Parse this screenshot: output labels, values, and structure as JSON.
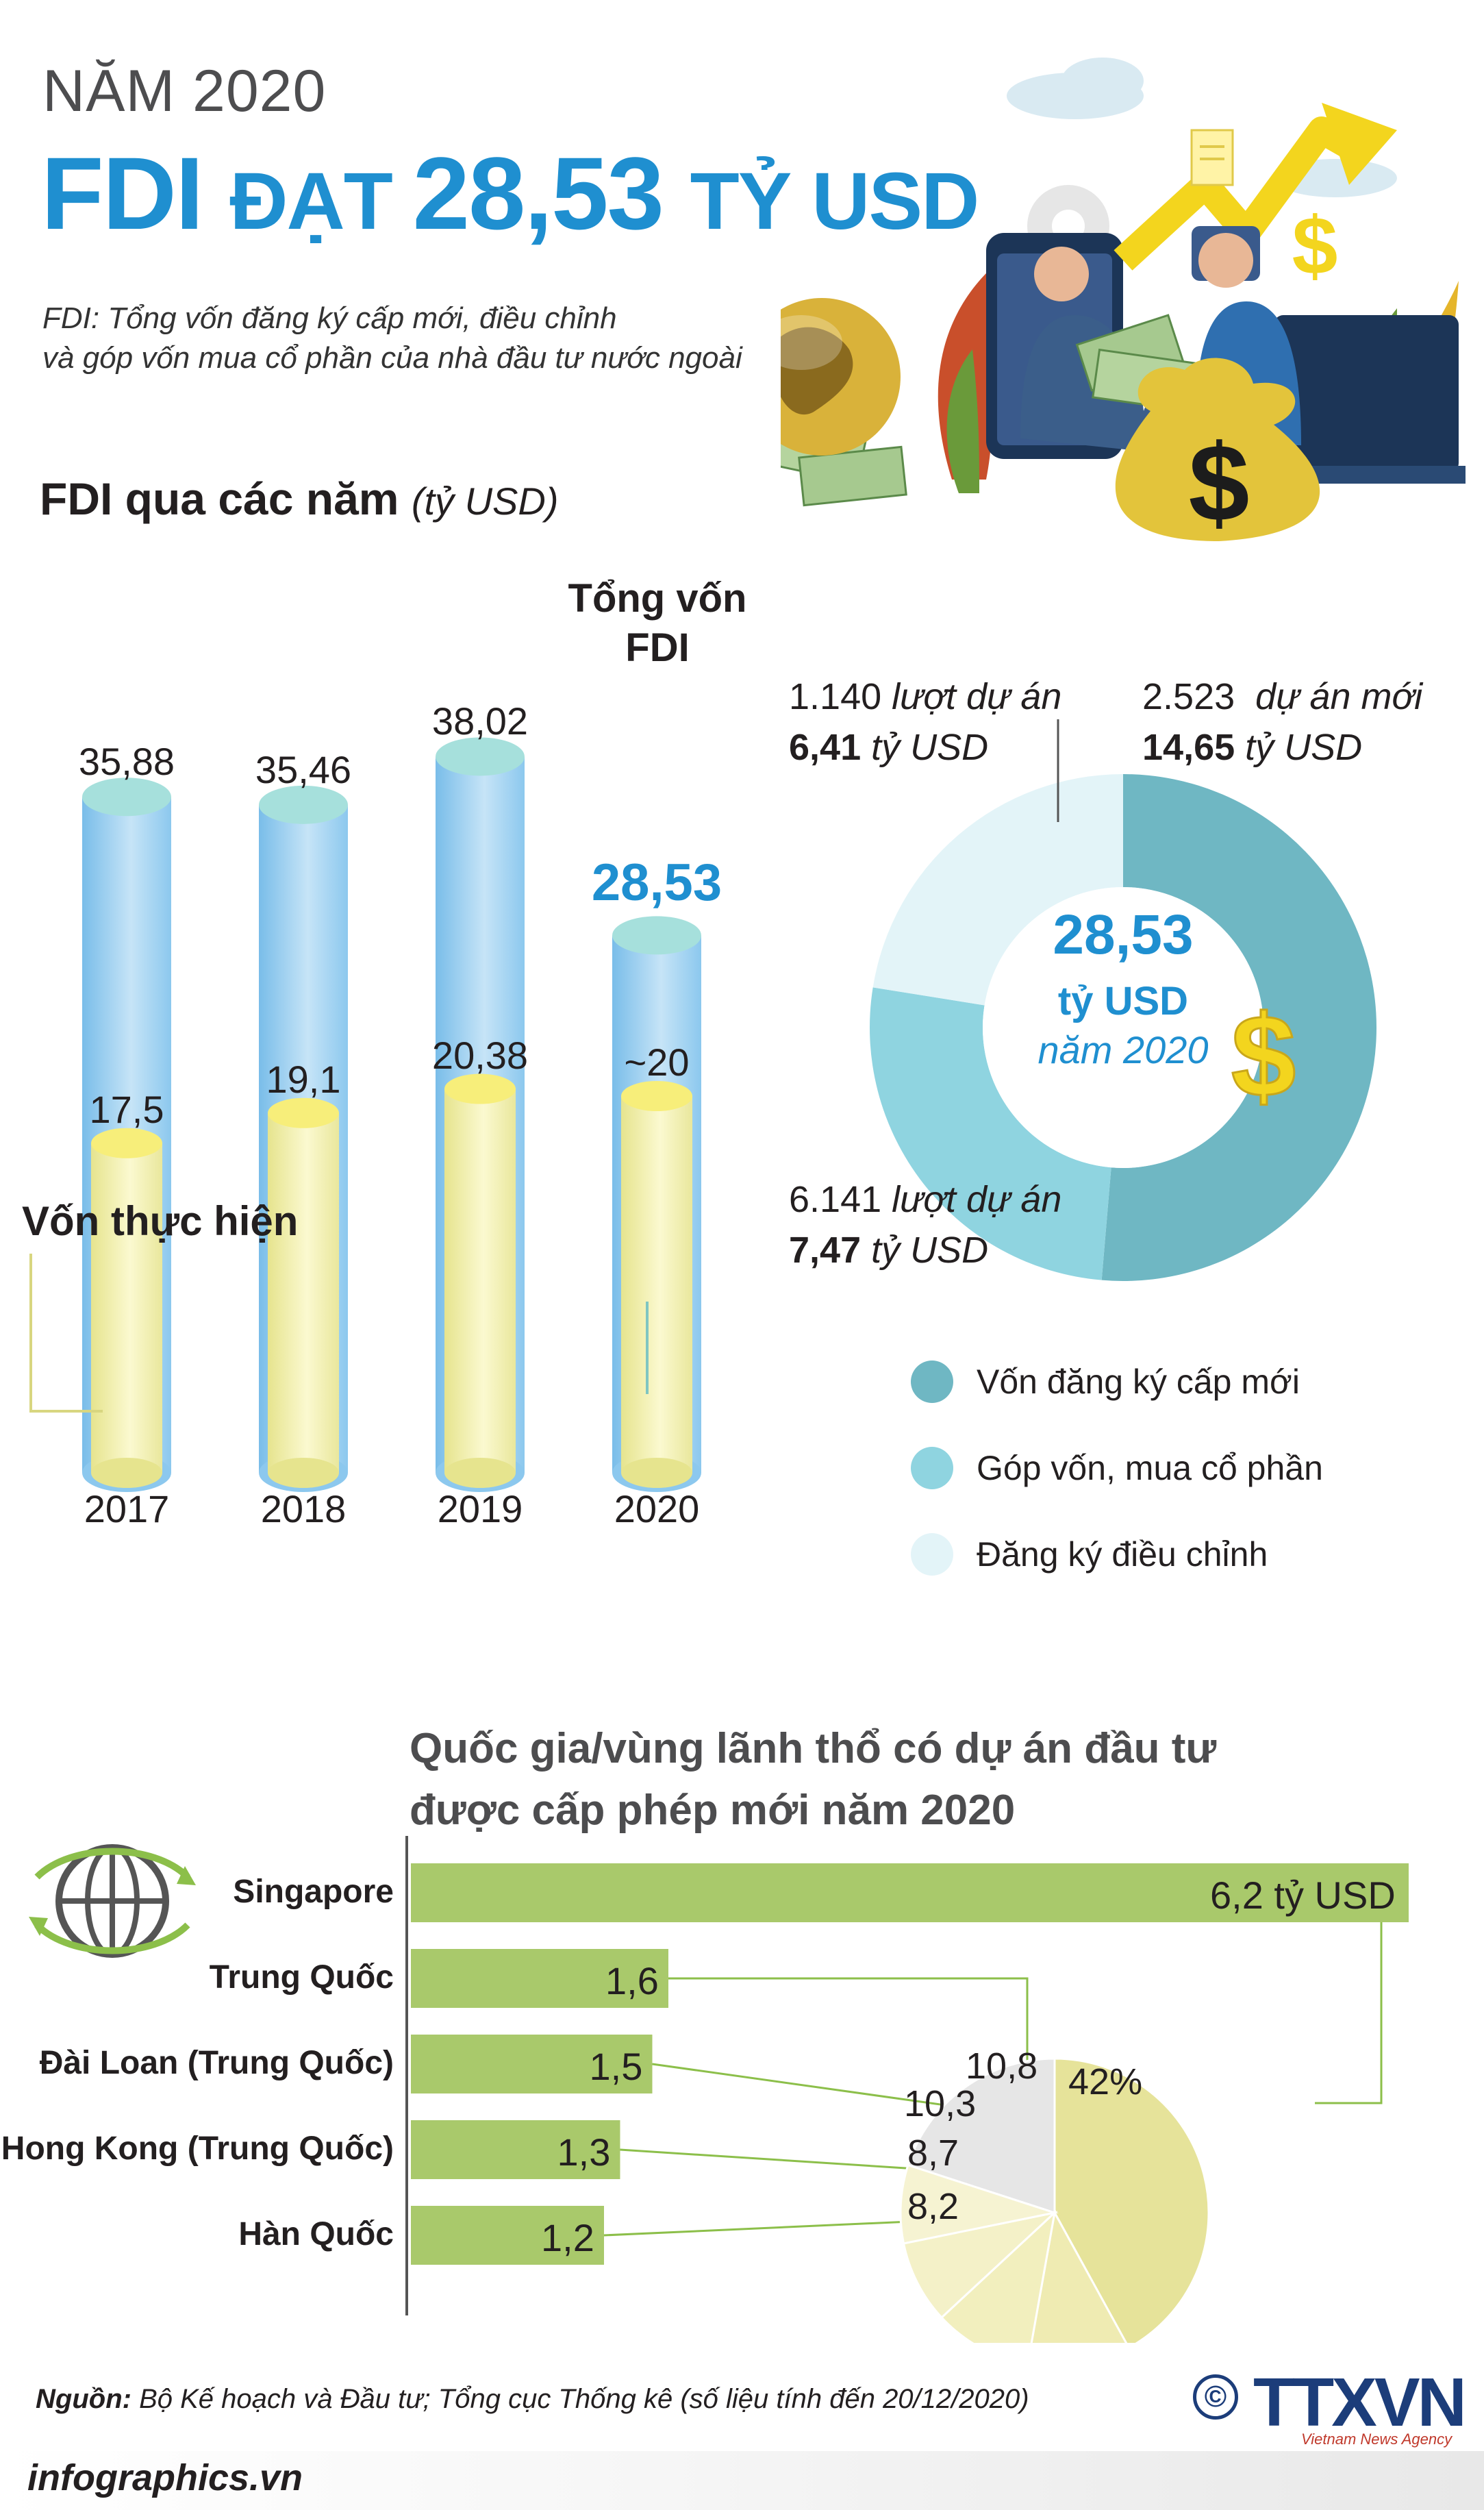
{
  "header": {
    "kicker": "NĂM 2020",
    "headline_a": "FDI ",
    "headline_b": "ĐẠT ",
    "headline_c": "28,53 ",
    "headline_d": "TỶ USD",
    "intro_line1": "FDI: Tổng vốn đăng ký cấp mới, điều chỉnh",
    "intro_line2": "và góp vốn mua cổ phần của nhà đầu tư nước ngoài"
  },
  "section1": {
    "title": "FDI qua các năm",
    "unit": "(tỷ USD)",
    "total_label_1": "Tổng vốn",
    "total_label_2": "FDI",
    "disbursed_label": "Vốn thực hiện"
  },
  "chart_data": [
    {
      "type": "bar",
      "categories": [
        "2017",
        "2018",
        "2019",
        "2020"
      ],
      "series": [
        {
          "name": "Tổng vốn FDI",
          "values": [
            35.88,
            35.46,
            38.02,
            28.53
          ],
          "labels": [
            "35,88",
            "35,46",
            "38,02",
            "28,53"
          ]
        },
        {
          "name": "Vốn thực hiện",
          "values": [
            17.5,
            19.1,
            20.38,
            20
          ],
          "labels": [
            "17,5",
            "19,1",
            "20,38",
            "~20"
          ]
        }
      ],
      "colors": {
        "total": "#a9d4f2",
        "disbursed": "#f2f0a8"
      }
    },
    {
      "type": "pie",
      "title": "28,53",
      "center_unit": "tỷ USD",
      "center_year": "năm 2020",
      "slices": [
        {
          "label": "Vốn đăng ký cấp mới",
          "value": 14.65,
          "value_label": "14,65",
          "projects": "2.523",
          "projects_text": "dự án mới",
          "color": "#6fb7c3"
        },
        {
          "label": "Góp vốn, mua cổ phần",
          "value": 7.47,
          "value_label": "7,47",
          "projects": "6.141",
          "projects_text": "lượt dự án",
          "color": "#8fd4e0"
        },
        {
          "label": "Đăng ký điều chỉnh",
          "value": 6.41,
          "value_label": "6,41",
          "projects": "1.140",
          "projects_text": "lượt dự án",
          "color": "#e3f4f8"
        }
      ],
      "unit": "tỷ USD",
      "legend_placement": "bottom-right"
    },
    {
      "type": "bar",
      "orientation": "horizontal",
      "title": "Quốc gia/vùng lãnh thổ có dự án đầu tư được cấp phép mới năm 2020",
      "categories": [
        "Singapore",
        "Trung Quốc",
        "Đài Loan (Trung Quốc)",
        "Hong Kong (Trung Quốc)",
        "Hàn Quốc"
      ],
      "values": [
        6.2,
        1.6,
        1.5,
        1.3,
        1.2
      ],
      "value_labels": [
        "6,2 tỷ USD",
        "1,6",
        "1,5",
        "1,3",
        "1,2"
      ],
      "color": "#a9c96b"
    },
    {
      "type": "pie",
      "slices": [
        {
          "label": "Singapore",
          "value": 42,
          "value_label": "42%",
          "color": "#e6e39a"
        },
        {
          "label": "Trung Quốc",
          "value": 10.8,
          "value_label": "10,8",
          "color": "#efebb2"
        },
        {
          "label": "Đài Loan (Trung Quốc)",
          "value": 10.3,
          "value_label": "10,3",
          "color": "#f2efbe"
        },
        {
          "label": "Hong Kong (Trung Quốc)",
          "value": 8.7,
          "value_label": "8,7",
          "color": "#f4f1c8"
        },
        {
          "label": "Hàn Quốc",
          "value": 8.2,
          "value_label": "8,2",
          "color": "#f6f3d2"
        },
        {
          "label": "",
          "value": 20,
          "value_label": "",
          "color": "#e6e6e6"
        }
      ]
    }
  ],
  "section2": {
    "title_line1": "Quốc gia/vùng lãnh thổ có dự án đầu tư",
    "title_line2": "được cấp phép mới năm 2020"
  },
  "footer": {
    "source_label": "Nguồn:",
    "source_text": " Bộ Kế hoạch và Đầu tư; Tổng cục Thống kê (số liệu tính đến 20/12/2020)",
    "site": "infographics.vn",
    "copyright": "©",
    "logo": "TTXVN",
    "logo_sub": "Vietnam News Agency"
  }
}
